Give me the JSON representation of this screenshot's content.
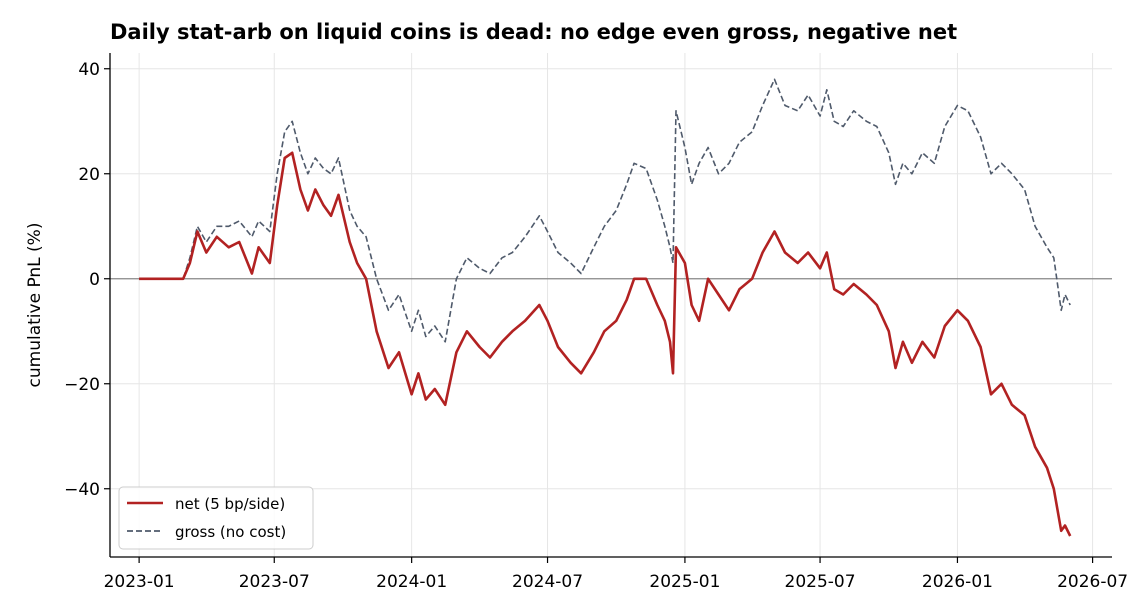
{
  "chart_data": {
    "type": "line",
    "title": "Daily stat-arb on liquid coins is dead: no edge even gross, negative net",
    "xlabel": "",
    "ylabel": "cumulative PnL (%)",
    "x_ticks": [
      "2023-01",
      "2023-07",
      "2024-01",
      "2024-07",
      "2025-01",
      "2025-07",
      "2026-01",
      "2026-07"
    ],
    "y_ticks": [
      40,
      20,
      0,
      -20,
      -40
    ],
    "y_tick_labels": [
      "40",
      "20",
      "0",
      "−20",
      "−40"
    ],
    "ylim": [
      -53,
      43
    ],
    "xlim": [
      "2022-11-23",
      "2026-07-27"
    ],
    "grid": true,
    "zero_line": true,
    "legend_position": "lower-left",
    "series": [
      {
        "name": "net (5 bp/side)",
        "style": "solid",
        "color": "#b22222",
        "points": [
          [
            "2023-01-01",
            0
          ],
          [
            "2023-03-01",
            0
          ],
          [
            "2023-03-10",
            3
          ],
          [
            "2023-03-20",
            9
          ],
          [
            "2023-04-01",
            5
          ],
          [
            "2023-04-15",
            8
          ],
          [
            "2023-05-01",
            6
          ],
          [
            "2023-05-15",
            7
          ],
          [
            "2023-06-01",
            1
          ],
          [
            "2023-06-10",
            6
          ],
          [
            "2023-06-25",
            3
          ],
          [
            "2023-07-05",
            14
          ],
          [
            "2023-07-15",
            23
          ],
          [
            "2023-07-25",
            24
          ],
          [
            "2023-08-05",
            17
          ],
          [
            "2023-08-15",
            13
          ],
          [
            "2023-08-25",
            17
          ],
          [
            "2023-09-05",
            14
          ],
          [
            "2023-09-15",
            12
          ],
          [
            "2023-09-25",
            16
          ],
          [
            "2023-10-10",
            7
          ],
          [
            "2023-10-20",
            3
          ],
          [
            "2023-11-01",
            0
          ],
          [
            "2023-11-15",
            -10
          ],
          [
            "2023-12-01",
            -17
          ],
          [
            "2023-12-15",
            -14
          ],
          [
            "2024-01-01",
            -22
          ],
          [
            "2024-01-10",
            -18
          ],
          [
            "2024-01-20",
            -23
          ],
          [
            "2024-02-01",
            -21
          ],
          [
            "2024-02-15",
            -24
          ],
          [
            "2024-03-01",
            -14
          ],
          [
            "2024-03-15",
            -10
          ],
          [
            "2024-04-01",
            -13
          ],
          [
            "2024-04-15",
            -15
          ],
          [
            "2024-05-01",
            -12
          ],
          [
            "2024-05-15",
            -10
          ],
          [
            "2024-06-01",
            -8
          ],
          [
            "2024-06-20",
            -5
          ],
          [
            "2024-07-01",
            -8
          ],
          [
            "2024-07-15",
            -13
          ],
          [
            "2024-08-01",
            -16
          ],
          [
            "2024-08-15",
            -18
          ],
          [
            "2024-09-01",
            -14
          ],
          [
            "2024-09-15",
            -10
          ],
          [
            "2024-10-01",
            -8
          ],
          [
            "2024-10-15",
            -4
          ],
          [
            "2024-10-25",
            0
          ],
          [
            "2024-11-10",
            0
          ],
          [
            "2024-11-25",
            -5
          ],
          [
            "2024-12-05",
            -8
          ],
          [
            "2024-12-12",
            -12
          ],
          [
            "2024-12-16",
            -18
          ],
          [
            "2024-12-20",
            6
          ],
          [
            "2025-01-01",
            3
          ],
          [
            "2025-01-10",
            -5
          ],
          [
            "2025-01-20",
            -8
          ],
          [
            "2025-02-01",
            0
          ],
          [
            "2025-02-15",
            -3
          ],
          [
            "2025-03-01",
            -6
          ],
          [
            "2025-03-15",
            -2
          ],
          [
            "2025-04-01",
            0
          ],
          [
            "2025-04-15",
            5
          ],
          [
            "2025-05-01",
            9
          ],
          [
            "2025-05-15",
            5
          ],
          [
            "2025-06-01",
            3
          ],
          [
            "2025-06-15",
            5
          ],
          [
            "2025-07-01",
            2
          ],
          [
            "2025-07-10",
            5
          ],
          [
            "2025-07-20",
            -2
          ],
          [
            "2025-08-01",
            -3
          ],
          [
            "2025-08-15",
            -1
          ],
          [
            "2025-09-01",
            -3
          ],
          [
            "2025-09-15",
            -5
          ],
          [
            "2025-10-01",
            -10
          ],
          [
            "2025-10-10",
            -17
          ],
          [
            "2025-10-20",
            -12
          ],
          [
            "2025-11-01",
            -16
          ],
          [
            "2025-11-15",
            -12
          ],
          [
            "2025-12-01",
            -15
          ],
          [
            "2025-12-15",
            -9
          ],
          [
            "2026-01-01",
            -6
          ],
          [
            "2026-01-15",
            -8
          ],
          [
            "2026-02-01",
            -13
          ],
          [
            "2026-02-15",
            -22
          ],
          [
            "2026-03-01",
            -20
          ],
          [
            "2026-03-15",
            -24
          ],
          [
            "2026-04-01",
            -26
          ],
          [
            "2026-04-15",
            -32
          ],
          [
            "2026-05-01",
            -36
          ],
          [
            "2026-05-10",
            -40
          ],
          [
            "2026-05-20",
            -48
          ],
          [
            "2026-05-25",
            -47
          ],
          [
            "2026-06-01",
            -49
          ]
        ]
      },
      {
        "name": "gross (no cost)",
        "style": "dashed",
        "color": "#4f5a6b",
        "points": [
          [
            "2023-01-01",
            0
          ],
          [
            "2023-03-01",
            0
          ],
          [
            "2023-03-10",
            4
          ],
          [
            "2023-03-20",
            10
          ],
          [
            "2023-04-01",
            7
          ],
          [
            "2023-04-15",
            10
          ],
          [
            "2023-05-01",
            10
          ],
          [
            "2023-05-15",
            11
          ],
          [
            "2023-06-01",
            8
          ],
          [
            "2023-06-10",
            11
          ],
          [
            "2023-06-25",
            9
          ],
          [
            "2023-07-05",
            20
          ],
          [
            "2023-07-15",
            28
          ],
          [
            "2023-07-25",
            30
          ],
          [
            "2023-08-05",
            24
          ],
          [
            "2023-08-15",
            20
          ],
          [
            "2023-08-25",
            23
          ],
          [
            "2023-09-05",
            21
          ],
          [
            "2023-09-15",
            20
          ],
          [
            "2023-09-25",
            23
          ],
          [
            "2023-10-10",
            13
          ],
          [
            "2023-10-20",
            10
          ],
          [
            "2023-11-01",
            8
          ],
          [
            "2023-11-15",
            0
          ],
          [
            "2023-12-01",
            -6
          ],
          [
            "2023-12-15",
            -3
          ],
          [
            "2024-01-01",
            -10
          ],
          [
            "2024-01-10",
            -6
          ],
          [
            "2024-01-20",
            -11
          ],
          [
            "2024-02-01",
            -9
          ],
          [
            "2024-02-15",
            -12
          ],
          [
            "2024-03-01",
            0
          ],
          [
            "2024-03-15",
            4
          ],
          [
            "2024-04-01",
            2
          ],
          [
            "2024-04-15",
            1
          ],
          [
            "2024-05-01",
            4
          ],
          [
            "2024-05-15",
            5
          ],
          [
            "2024-06-01",
            8
          ],
          [
            "2024-06-20",
            12
          ],
          [
            "2024-07-01",
            9
          ],
          [
            "2024-07-15",
            5
          ],
          [
            "2024-08-01",
            3
          ],
          [
            "2024-08-15",
            1
          ],
          [
            "2024-09-01",
            6
          ],
          [
            "2024-09-15",
            10
          ],
          [
            "2024-10-01",
            13
          ],
          [
            "2024-10-15",
            18
          ],
          [
            "2024-10-25",
            22
          ],
          [
            "2024-11-10",
            21
          ],
          [
            "2024-11-25",
            15
          ],
          [
            "2024-12-05",
            10
          ],
          [
            "2024-12-12",
            6
          ],
          [
            "2024-12-16",
            3
          ],
          [
            "2024-12-20",
            32
          ],
          [
            "2025-01-01",
            25
          ],
          [
            "2025-01-10",
            18
          ],
          [
            "2025-01-20",
            22
          ],
          [
            "2025-02-01",
            25
          ],
          [
            "2025-02-15",
            20
          ],
          [
            "2025-03-01",
            22
          ],
          [
            "2025-03-15",
            26
          ],
          [
            "2025-04-01",
            28
          ],
          [
            "2025-04-15",
            33
          ],
          [
            "2025-05-01",
            38
          ],
          [
            "2025-05-15",
            33
          ],
          [
            "2025-06-01",
            32
          ],
          [
            "2025-06-15",
            35
          ],
          [
            "2025-07-01",
            31
          ],
          [
            "2025-07-10",
            36
          ],
          [
            "2025-07-20",
            30
          ],
          [
            "2025-08-01",
            29
          ],
          [
            "2025-08-15",
            32
          ],
          [
            "2025-09-01",
            30
          ],
          [
            "2025-09-15",
            29
          ],
          [
            "2025-10-01",
            24
          ],
          [
            "2025-10-10",
            18
          ],
          [
            "2025-10-20",
            22
          ],
          [
            "2025-11-01",
            20
          ],
          [
            "2025-11-15",
            24
          ],
          [
            "2025-12-01",
            22
          ],
          [
            "2025-12-15",
            29
          ],
          [
            "2026-01-01",
            33
          ],
          [
            "2026-01-15",
            32
          ],
          [
            "2026-02-01",
            27
          ],
          [
            "2026-02-15",
            20
          ],
          [
            "2026-03-01",
            22
          ],
          [
            "2026-03-15",
            20
          ],
          [
            "2026-04-01",
            17
          ],
          [
            "2026-04-15",
            10
          ],
          [
            "2026-05-01",
            6
          ],
          [
            "2026-05-10",
            4
          ],
          [
            "2026-05-20",
            -6
          ],
          [
            "2026-05-25",
            -3
          ],
          [
            "2026-06-01",
            -5
          ]
        ]
      }
    ]
  }
}
